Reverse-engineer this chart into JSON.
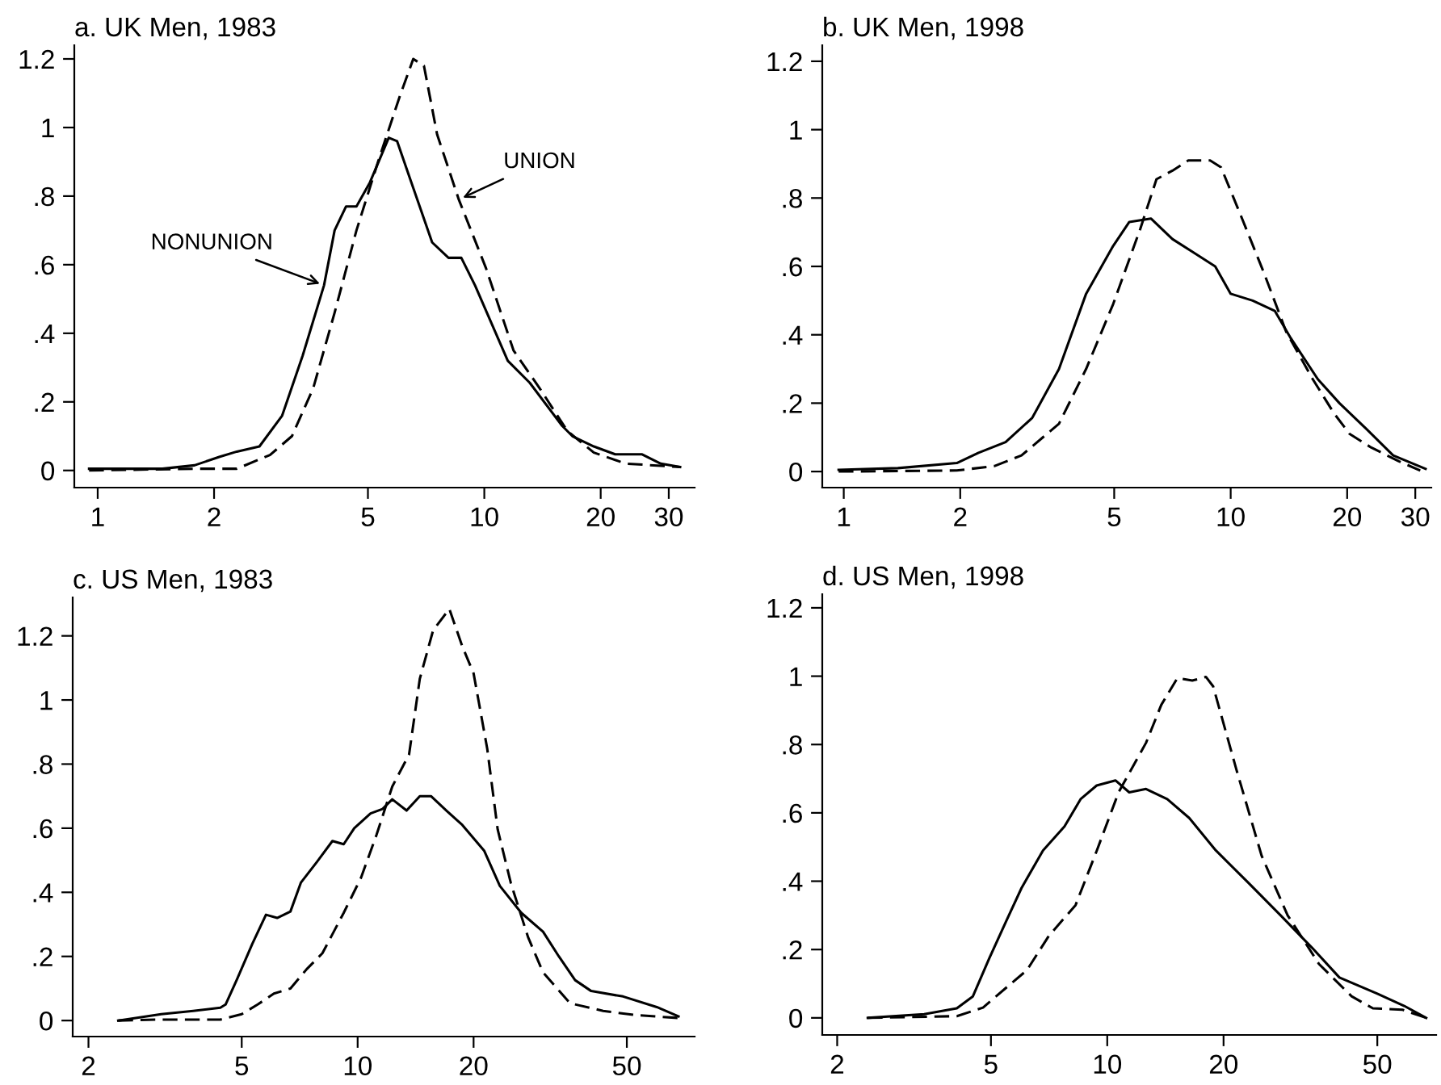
{
  "chart_data": [
    {
      "type": "line",
      "title": "a. UK Men, 1983",
      "log": "x",
      "grid": false,
      "xlim": [
        0.87,
        35
      ],
      "ylim": [
        -0.05,
        1.24
      ],
      "xticks": [
        1,
        2,
        5,
        10,
        20,
        30
      ],
      "yticks": [
        0,
        {
          "value": 0.2,
          "label": ".2"
        },
        {
          "value": 0.4,
          "label": ".4"
        },
        {
          "value": 0.6,
          "label": ".6"
        },
        {
          "value": 0.8,
          "label": ".8"
        },
        1,
        1.2
      ],
      "annotations": [
        {
          "text": "NONUNION",
          "x": 3.85,
          "y": 0.54
        },
        {
          "text": "UNION",
          "x": 8.59,
          "y": 0.79
        }
      ],
      "series": [
        {
          "color": "#000000",
          "line_style": "solid",
          "x": [
            0.95,
            1.47,
            1.78,
            2.07,
            2.29,
            2.62,
            3.0,
            3.39,
            3.85,
            4.1,
            4.39,
            4.67,
            5.06,
            5.66,
            5.95,
            6.43,
            7.33,
            8.08,
            8.72,
            9.46,
            11.5,
            13.1,
            15.9,
            16.9,
            19.2,
            21.8,
            25.6,
            28.6,
            32.1
          ],
          "values": [
            0.005,
            0.005,
            0.015,
            0.04,
            0.055,
            0.07,
            0.16,
            0.335,
            0.54,
            0.7,
            0.77,
            0.77,
            0.84,
            0.97,
            0.96,
            0.85,
            0.665,
            0.62,
            0.62,
            0.54,
            0.32,
            0.256,
            0.13,
            0.1,
            0.07,
            0.047,
            0.047,
            0.02,
            0.01
          ]
        },
        {
          "color": "#000000",
          "line_style": "dashed",
          "x": [
            0.95,
            1.78,
            2.29,
            2.79,
            3.18,
            3.61,
            4.1,
            4.67,
            5.31,
            6.04,
            6.55,
            6.98,
            7.55,
            8.59,
            10.1,
            11.9,
            13.9,
            16.4,
            19.2,
            23.2,
            32.1
          ],
          "values": [
            0.0,
            0.005,
            0.005,
            0.045,
            0.1,
            0.24,
            0.46,
            0.7,
            0.9,
            1.09,
            1.2,
            1.18,
            0.98,
            0.79,
            0.59,
            0.35,
            0.24,
            0.115,
            0.052,
            0.02,
            0.01
          ]
        }
      ]
    },
    {
      "type": "line",
      "title": "b. UK Men, 1998",
      "log": "x",
      "grid": false,
      "xlim": [
        0.88,
        33
      ],
      "ylim": [
        -0.047,
        1.247
      ],
      "xticks": [
        1,
        2,
        5,
        10,
        20,
        30
      ],
      "yticks": [
        0,
        {
          "value": 0.2,
          "label": ".2"
        },
        {
          "value": 0.4,
          "label": ".4"
        },
        {
          "value": 0.6,
          "label": ".6"
        },
        {
          "value": 0.8,
          "label": ".8"
        },
        1,
        1.2
      ],
      "series": [
        {
          "color": "#000000",
          "line_style": "solid",
          "x": [
            0.97,
            1.38,
            1.96,
            2.23,
            2.62,
            3.07,
            3.6,
            4.23,
            4.97,
            5.47,
            6.22,
            7.07,
            8.03,
            9.12,
            10.0,
            11.4,
            13.0,
            14.3,
            16.8,
            19.1,
            22.4,
            26.3,
            31.9
          ],
          "values": [
            0.005,
            0.01,
            0.025,
            0.055,
            0.086,
            0.157,
            0.3,
            0.52,
            0.66,
            0.73,
            0.74,
            0.68,
            0.64,
            0.6,
            0.52,
            0.5,
            0.47,
            0.39,
            0.27,
            0.2,
            0.125,
            0.047,
            0.008
          ]
        },
        {
          "color": "#000000",
          "line_style": "dashed",
          "x": [
            0.97,
            1.96,
            2.45,
            2.88,
            3.6,
            4.23,
            4.97,
            5.84,
            6.43,
            7.07,
            7.77,
            8.85,
            9.44,
            10.7,
            12.2,
            13.9,
            16.3,
            18.5,
            20.3,
            23.1,
            27.2,
            30.9
          ],
          "values": [
            0.0,
            0.003,
            0.016,
            0.047,
            0.14,
            0.3,
            0.49,
            0.71,
            0.855,
            0.88,
            0.91,
            0.91,
            0.89,
            0.74,
            0.58,
            0.41,
            0.27,
            0.17,
            0.11,
            0.07,
            0.03,
            0.003
          ]
        }
      ]
    },
    {
      "type": "line",
      "title": "c. US Men, 1983",
      "log": "x",
      "grid": false,
      "xlim": [
        1.82,
        75
      ],
      "ylim": [
        -0.05,
        1.32
      ],
      "xticks": [
        2,
        5,
        10,
        20,
        50
      ],
      "yticks": [
        0,
        {
          "value": 0.2,
          "label": ".2"
        },
        {
          "value": 0.4,
          "label": ".4"
        },
        {
          "value": 0.6,
          "label": ".6"
        },
        {
          "value": 0.8,
          "label": ".8"
        },
        1,
        1.2
      ],
      "series": [
        {
          "color": "#000000",
          "line_style": "solid",
          "x": [
            2.39,
            3.09,
            3.74,
            4.4,
            4.54,
            4.85,
            5.33,
            5.78,
            6.18,
            6.69,
            7.12,
            7.84,
            8.6,
            9.2,
            9.8,
            10.8,
            11.6,
            12.3,
            13.4,
            14.5,
            15.5,
            17.0,
            18.7,
            21.3,
            23.4,
            26.6,
            30.3,
            33.3,
            36.7,
            40.4,
            48.9,
            59.8,
            68.1
          ],
          "values": [
            0.0,
            0.02,
            0.03,
            0.04,
            0.05,
            0.126,
            0.24,
            0.33,
            0.32,
            0.34,
            0.43,
            0.495,
            0.56,
            0.55,
            0.6,
            0.646,
            0.66,
            0.69,
            0.655,
            0.7,
            0.7,
            0.655,
            0.61,
            0.53,
            0.42,
            0.336,
            0.277,
            0.2,
            0.126,
            0.092,
            0.075,
            0.042,
            0.013
          ]
        },
        {
          "color": "#000000",
          "line_style": "dashed",
          "x": [
            2.39,
            2.98,
            4.4,
            5.0,
            5.5,
            6.06,
            6.69,
            7.37,
            8.1,
            9.2,
            10.2,
            11.2,
            12.3,
            13.6,
            14.5,
            15.7,
            17.3,
            18.7,
            20.0,
            21.7,
            23.1,
            25.0,
            27.7,
            30.3,
            35.6,
            43.4,
            52.6,
            68.1
          ],
          "values": [
            0.0,
            0.003,
            0.003,
            0.02,
            0.05,
            0.084,
            0.1,
            0.16,
            0.21,
            0.336,
            0.445,
            0.58,
            0.73,
            0.83,
            1.066,
            1.217,
            1.284,
            1.167,
            1.083,
            0.848,
            0.596,
            0.428,
            0.26,
            0.15,
            0.054,
            0.03,
            0.017,
            0.008
          ]
        }
      ]
    },
    {
      "type": "line",
      "title": "d. US Men, 1998",
      "log": "x",
      "grid": false,
      "xlim": [
        1.83,
        71
      ],
      "ylim": [
        -0.05,
        1.24
      ],
      "xticks": [
        2,
        5,
        10,
        20,
        50
      ],
      "yticks": [
        0,
        {
          "value": 0.2,
          "label": ".2"
        },
        {
          "value": 0.4,
          "label": ".4"
        },
        {
          "value": 0.6,
          "label": ".6"
        },
        {
          "value": 0.8,
          "label": ".8"
        },
        1,
        1.2
      ],
      "series": [
        {
          "color": "#000000",
          "line_style": "solid",
          "x": [
            2.4,
            3.36,
            4.08,
            4.49,
            4.95,
            5.46,
            6.0,
            6.82,
            7.75,
            8.53,
            9.39,
            10.5,
            11.4,
            12.6,
            14.3,
            16.3,
            19.1,
            23.2,
            28.1,
            33.9,
            39.9,
            50.0,
            58.7,
            66.9
          ],
          "values": [
            0.0,
            0.011,
            0.028,
            0.063,
            0.174,
            0.28,
            0.38,
            0.49,
            0.56,
            0.64,
            0.68,
            0.695,
            0.66,
            0.67,
            0.64,
            0.585,
            0.49,
            0.395,
            0.3,
            0.205,
            0.118,
            0.071,
            0.035,
            0.0
          ]
        },
        {
          "color": "#000000",
          "line_style": "dashed",
          "x": [
            2.4,
            4.08,
            4.77,
            5.46,
            6.2,
            7.06,
            8.28,
            9.4,
            10.7,
            12.6,
            13.8,
            15.2,
            16.6,
            18.0,
            18.8,
            21.6,
            25.1,
            29.3,
            35.3,
            42.9,
            48.7,
            58.0,
            66.9
          ],
          "values": [
            0.0,
            0.005,
            0.03,
            0.087,
            0.14,
            0.24,
            0.33,
            0.49,
            0.66,
            0.805,
            0.916,
            0.995,
            0.987,
            0.998,
            0.97,
            0.726,
            0.474,
            0.3,
            0.158,
            0.063,
            0.028,
            0.024,
            0.0
          ]
        }
      ]
    }
  ]
}
